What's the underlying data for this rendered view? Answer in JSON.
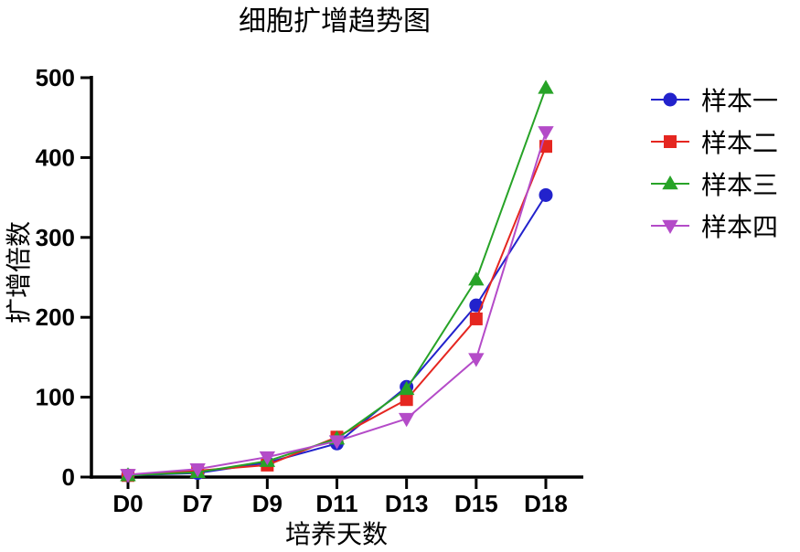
{
  "title": "细胞扩增趋势图",
  "chart_data": {
    "type": "line",
    "title": "细胞扩增趋势图",
    "xlabel": "培养天数",
    "ylabel": "扩增倍数",
    "categories": [
      "D0",
      "D7",
      "D9",
      "D11",
      "D13",
      "D15",
      "D18"
    ],
    "ylim": [
      0,
      500
    ],
    "yticks": [
      0,
      100,
      200,
      300,
      400,
      500
    ],
    "grid": false,
    "legend_position": "right",
    "series": [
      {
        "name": "样本一",
        "marker": "circle",
        "color": "#2222cc",
        "values": [
          2,
          5,
          18,
          42,
          113,
          215,
          353
        ]
      },
      {
        "name": "样本二",
        "marker": "square",
        "color": "#e52620",
        "values": [
          2,
          8,
          15,
          50,
          97,
          198,
          414
        ]
      },
      {
        "name": "样本三",
        "marker": "triangle-up",
        "color": "#27a327",
        "values": [
          2,
          6,
          20,
          48,
          110,
          247,
          487
        ]
      },
      {
        "name": "样本四",
        "marker": "triangle-down",
        "color": "#b44bc8",
        "values": [
          3,
          10,
          25,
          45,
          73,
          148,
          432
        ]
      }
    ]
  }
}
